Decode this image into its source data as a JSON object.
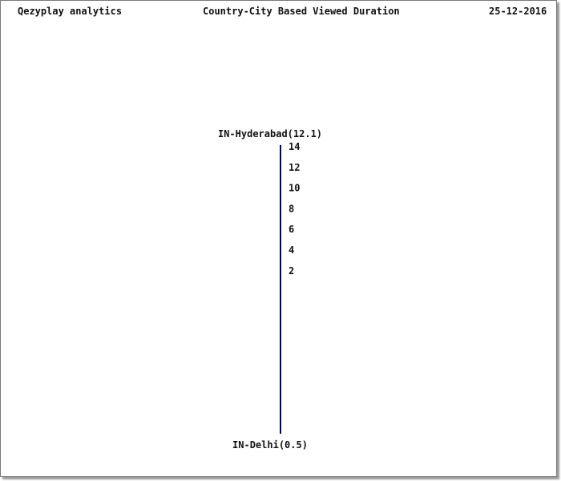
{
  "header": {
    "app_name": "Qezyplay analytics",
    "chart_title": "Country-City Based Viewed Duration",
    "date": "25-12-2016"
  },
  "chart_data": {
    "type": "funnel",
    "title": "Country-City Based Viewed Duration",
    "segments": [
      {
        "label": "IN-Hyderabad(12.1)",
        "name": "IN-Hyderabad",
        "value": 12.1
      },
      {
        "label": "IN-Delhi(0.5)",
        "name": "IN-Delhi",
        "value": 0.5
      }
    ],
    "scale_ticks": [
      14,
      12,
      10,
      8,
      6,
      4,
      2
    ],
    "colors": {
      "line": "#000066",
      "text": "#111111"
    }
  }
}
